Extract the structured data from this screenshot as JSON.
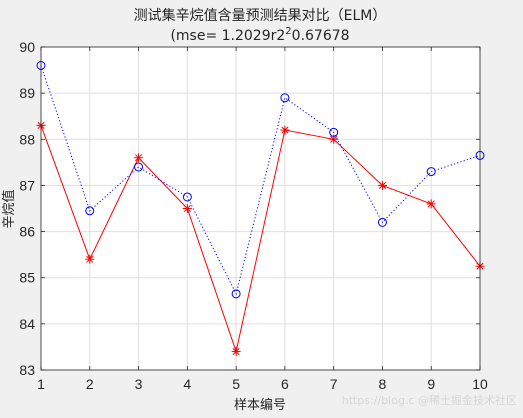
{
  "chart_data": {
    "type": "line",
    "title": "测试集辛烷值含量预测结果对比（ELM）",
    "subtitle": "(mse= 1.2029r2^0.67678",
    "subtitle_main": "(mse= 1.2029r2",
    "subtitle_sup": "2",
    "subtitle_tail": "0.67678",
    "xlabel": "样本编号",
    "ylabel": "辛烷值",
    "x": [
      1,
      2,
      3,
      4,
      5,
      6,
      7,
      8,
      9,
      10
    ],
    "xlim": [
      1,
      10
    ],
    "ylim": [
      83,
      90
    ],
    "xticks": [
      1,
      2,
      3,
      4,
      5,
      6,
      7,
      8,
      9,
      10
    ],
    "yticks": [
      83,
      84,
      85,
      86,
      87,
      88,
      89,
      90
    ],
    "grid": true,
    "series": [
      {
        "marker": "star",
        "line": "solid",
        "color": "#ff0000",
        "values": [
          88.3,
          85.4,
          87.6,
          86.5,
          83.4,
          88.2,
          88.0,
          87.0,
          86.6,
          85.25
        ]
      },
      {
        "marker": "circle",
        "line": "dotted",
        "color": "#0000ff",
        "values": [
          89.6,
          86.45,
          87.4,
          86.75,
          84.65,
          88.9,
          88.15,
          86.2,
          87.3,
          87.65
        ]
      }
    ]
  },
  "watermark": "https://blog.c @稀土掘金技术社区"
}
